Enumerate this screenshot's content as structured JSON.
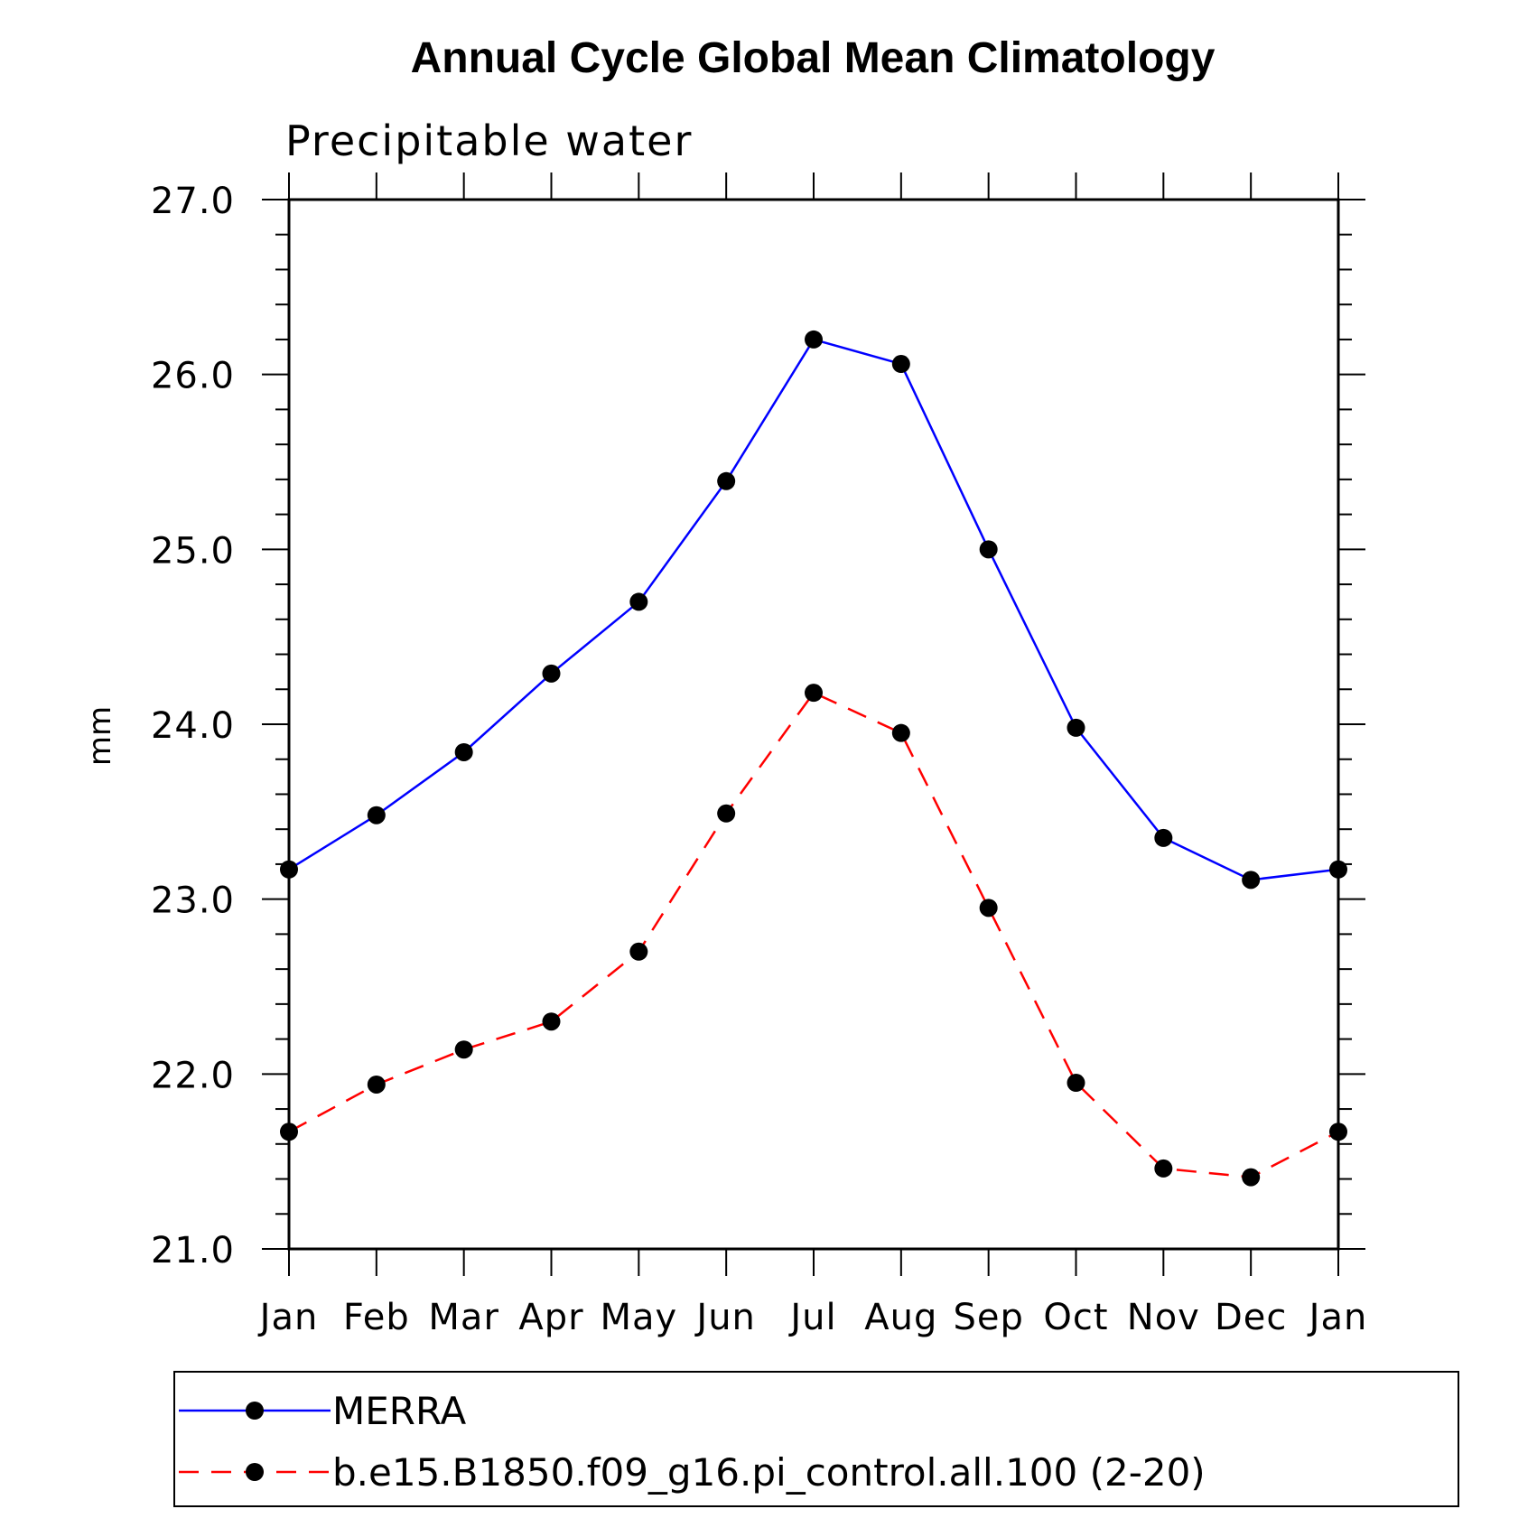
{
  "chart_data": {
    "type": "line",
    "title": "Annual Cycle Global Mean Climatology",
    "subtitle": "Precipitable water",
    "xlabel": "",
    "ylabel": "mm",
    "categories": [
      "Jan",
      "Feb",
      "Mar",
      "Apr",
      "May",
      "Jun",
      "Jul",
      "Aug",
      "Sep",
      "Oct",
      "Nov",
      "Dec",
      "Jan"
    ],
    "ylim": [
      21.0,
      27.0
    ],
    "yticks": [
      "21.0",
      "22.0",
      "23.0",
      "24.0",
      "25.0",
      "26.0",
      "27.0"
    ],
    "grid": false,
    "legend_position": "bottom",
    "series": [
      {
        "name": "MERRA",
        "color": "#0000ff",
        "line_style": "solid",
        "marker": "filled-circle",
        "values": [
          23.17,
          23.48,
          23.84,
          24.29,
          24.7,
          25.39,
          26.2,
          26.06,
          25.0,
          23.98,
          23.35,
          23.11,
          23.17
        ]
      },
      {
        "name": "b.e15.B1850.f09_g16.pi_control.all.100 (2-20)",
        "color": "#ff0000",
        "line_style": "dashed",
        "marker": "filled-circle",
        "values": [
          21.67,
          21.94,
          22.14,
          22.3,
          22.7,
          23.49,
          24.18,
          23.95,
          22.95,
          21.95,
          21.46,
          21.41,
          21.67
        ]
      }
    ]
  }
}
